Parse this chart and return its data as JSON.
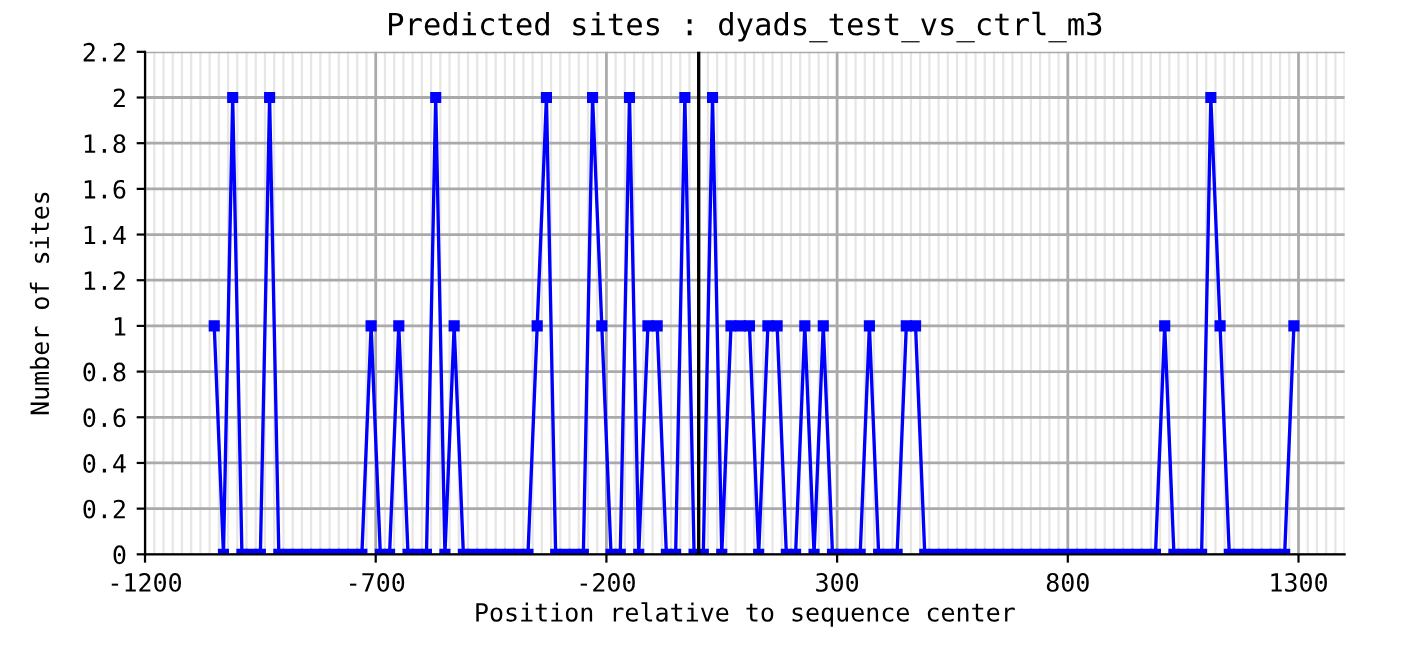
{
  "chart_data": {
    "type": "line",
    "title": "Predicted sites : dyads_test_vs_ctrl_m3",
    "xlabel": "Position relative to sequence center",
    "ylabel": "Number of sites",
    "x": [
      -1050,
      -1030,
      -1010,
      -990,
      -970,
      -950,
      -930,
      -910,
      -890,
      -870,
      -850,
      -830,
      -810,
      -790,
      -770,
      -750,
      -730,
      -710,
      -690,
      -670,
      -650,
      -630,
      -610,
      -590,
      -570,
      -550,
      -530,
      -510,
      -490,
      -470,
      -450,
      -430,
      -410,
      -390,
      -370,
      -350,
      -330,
      -310,
      -290,
      -270,
      -250,
      -230,
      -210,
      -190,
      -170,
      -150,
      -130,
      -110,
      -90,
      -70,
      -50,
      -30,
      -10,
      10,
      30,
      50,
      70,
      90,
      110,
      130,
      150,
      170,
      190,
      210,
      230,
      250,
      270,
      290,
      310,
      330,
      350,
      370,
      390,
      410,
      430,
      450,
      470,
      490,
      510,
      530,
      550,
      570,
      590,
      610,
      630,
      650,
      670,
      690,
      710,
      730,
      750,
      770,
      790,
      810,
      830,
      850,
      870,
      890,
      910,
      930,
      950,
      970,
      990,
      1010,
      1030,
      1050,
      1070,
      1090,
      1110,
      1130,
      1150,
      1170,
      1190,
      1210,
      1230,
      1250,
      1270,
      1290
    ],
    "series": [
      {
        "color": "#0000ff",
        "values": [
          1,
          0,
          2,
          0,
          0,
          0,
          2,
          0,
          0,
          0,
          0,
          0,
          0,
          0,
          0,
          0,
          0,
          1,
          0,
          0,
          1,
          0,
          0,
          0,
          2,
          0,
          1,
          0,
          0,
          0,
          0,
          0,
          0,
          0,
          0,
          1,
          2,
          0,
          0,
          0,
          0,
          2,
          1,
          0,
          0,
          2,
          0,
          1,
          1,
          0,
          0,
          2,
          0,
          0,
          2,
          0,
          1,
          1,
          1,
          0,
          1,
          1,
          0,
          0,
          1,
          0,
          1,
          0,
          0,
          0,
          0,
          1,
          0,
          0,
          0,
          1,
          1,
          0,
          0,
          0,
          0,
          0,
          0,
          0,
          0,
          0,
          0,
          0,
          0,
          0,
          0,
          0,
          0,
          0,
          0,
          0,
          0,
          0,
          0,
          0,
          0,
          0,
          0,
          1,
          0,
          0,
          0,
          0,
          2,
          1,
          0,
          0,
          0,
          0,
          0,
          0,
          0,
          1
        ]
      }
    ],
    "xlim": [
      -1200,
      1400
    ],
    "xticks": [
      -1200,
      -700,
      -200,
      300,
      800,
      1300
    ],
    "ylim": [
      0,
      2.2
    ],
    "yticks": [
      0,
      0.2,
      0.4,
      0.6,
      0.8,
      1,
      1.2,
      1.4,
      1.6,
      1.8,
      2,
      2.2
    ],
    "grid": true,
    "marker": "square",
    "line_style": "solid",
    "ref_lines": [
      {
        "axis": "x",
        "value": 0,
        "color": "#000000"
      }
    ]
  }
}
